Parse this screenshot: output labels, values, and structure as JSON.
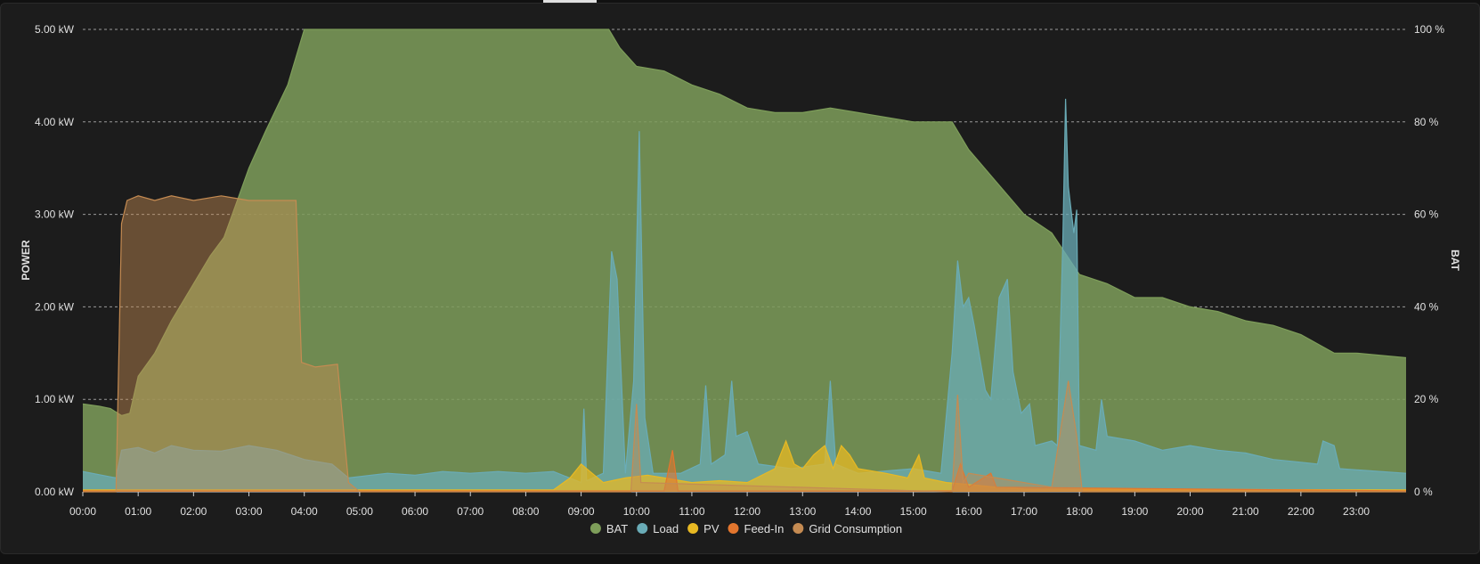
{
  "chart_data": {
    "type": "area",
    "x_labels": [
      "00:00",
      "01:00",
      "02:00",
      "03:00",
      "04:00",
      "05:00",
      "06:00",
      "07:00",
      "08:00",
      "09:00",
      "10:00",
      "11:00",
      "12:00",
      "13:00",
      "14:00",
      "15:00",
      "16:00",
      "17:00",
      "18:00",
      "19:00",
      "20:00",
      "21:00",
      "22:00",
      "23:00"
    ],
    "x_range": [
      0,
      23.9
    ],
    "y_left": {
      "title": "POWER",
      "unit": "kW",
      "range": [
        0,
        5
      ],
      "ticks": [
        "0.00 kW",
        "1.00 kW",
        "2.00 kW",
        "3.00 kW",
        "4.00 kW",
        "5.00 kW"
      ]
    },
    "y_right": {
      "title": "BAT",
      "unit": "%",
      "range": [
        0,
        100
      ],
      "ticks": [
        "0 %",
        "20 %",
        "40 %",
        "60 %",
        "80 %",
        "100 %"
      ]
    },
    "grid": true,
    "legend_position": "bottom",
    "series": [
      {
        "name": "BAT",
        "axis": "right",
        "color": "#7e9e5a",
        "points": [
          [
            0,
            19
          ],
          [
            0.3,
            18.5
          ],
          [
            0.5,
            18
          ],
          [
            0.7,
            16.5
          ],
          [
            0.85,
            17
          ],
          [
            1,
            25
          ],
          [
            1.3,
            30
          ],
          [
            1.6,
            37
          ],
          [
            2,
            45
          ],
          [
            2.3,
            51
          ],
          [
            2.55,
            55
          ],
          [
            2.7,
            60
          ],
          [
            3,
            70
          ],
          [
            3.3,
            78
          ],
          [
            3.7,
            88
          ],
          [
            4,
            100
          ],
          [
            9.5,
            100
          ],
          [
            9.7,
            96
          ],
          [
            10,
            92
          ],
          [
            10.5,
            91
          ],
          [
            11,
            88
          ],
          [
            11.5,
            86
          ],
          [
            12,
            83
          ],
          [
            12.5,
            82
          ],
          [
            13,
            82
          ],
          [
            13.5,
            83
          ],
          [
            14,
            82
          ],
          [
            14.5,
            81
          ],
          [
            15,
            80
          ],
          [
            15.7,
            80
          ],
          [
            16,
            74
          ],
          [
            16.5,
            67
          ],
          [
            17,
            60
          ],
          [
            17.5,
            56
          ],
          [
            18,
            47
          ],
          [
            18.5,
            45
          ],
          [
            19,
            42
          ],
          [
            19.5,
            42
          ],
          [
            20,
            40
          ],
          [
            20.5,
            39
          ],
          [
            21,
            37
          ],
          [
            21.5,
            36
          ],
          [
            22,
            34
          ],
          [
            22.3,
            32
          ],
          [
            22.6,
            30
          ],
          [
            23,
            30
          ],
          [
            23.9,
            29
          ]
        ]
      },
      {
        "name": "Load",
        "axis": "left",
        "color": "#6aacb7",
        "points": [
          [
            0,
            0.22
          ],
          [
            0.6,
            0.15
          ],
          [
            0.7,
            0.45
          ],
          [
            1,
            0.48
          ],
          [
            1.3,
            0.42
          ],
          [
            1.6,
            0.5
          ],
          [
            2,
            0.45
          ],
          [
            2.5,
            0.44
          ],
          [
            3,
            0.5
          ],
          [
            3.5,
            0.45
          ],
          [
            4,
            0.35
          ],
          [
            4.5,
            0.3
          ],
          [
            4.8,
            0.15
          ],
          [
            5.5,
            0.2
          ],
          [
            6,
            0.18
          ],
          [
            6.5,
            0.22
          ],
          [
            7,
            0.2
          ],
          [
            7.5,
            0.22
          ],
          [
            8,
            0.2
          ],
          [
            8.5,
            0.22
          ],
          [
            9,
            0.1
          ],
          [
            9.05,
            0.9
          ],
          [
            9.1,
            0.12
          ],
          [
            9.4,
            0.2
          ],
          [
            9.55,
            2.6
          ],
          [
            9.65,
            2.3
          ],
          [
            9.8,
            0.2
          ],
          [
            9.95,
            1.2
          ],
          [
            10.05,
            3.9
          ],
          [
            10.15,
            0.8
          ],
          [
            10.3,
            0.2
          ],
          [
            10.8,
            0.2
          ],
          [
            11.15,
            0.3
          ],
          [
            11.25,
            1.15
          ],
          [
            11.35,
            0.3
          ],
          [
            11.6,
            0.4
          ],
          [
            11.72,
            1.2
          ],
          [
            11.8,
            0.6
          ],
          [
            12,
            0.65
          ],
          [
            12.2,
            0.3
          ],
          [
            12.8,
            0.25
          ],
          [
            13.4,
            0.3
          ],
          [
            13.5,
            1.2
          ],
          [
            13.6,
            0.3
          ],
          [
            14,
            0.2
          ],
          [
            15,
            0.25
          ],
          [
            15.5,
            0.2
          ],
          [
            15.7,
            1.5
          ],
          [
            15.8,
            2.5
          ],
          [
            15.9,
            2.0
          ],
          [
            16,
            2.1
          ],
          [
            16.1,
            1.8
          ],
          [
            16.3,
            1.1
          ],
          [
            16.4,
            1.0
          ],
          [
            16.55,
            2.1
          ],
          [
            16.7,
            2.3
          ],
          [
            16.8,
            1.3
          ],
          [
            16.95,
            0.85
          ],
          [
            17.1,
            0.95
          ],
          [
            17.2,
            0.5
          ],
          [
            17.5,
            0.55
          ],
          [
            17.6,
            0.5
          ],
          [
            17.7,
            2.7
          ],
          [
            17.75,
            4.25
          ],
          [
            17.8,
            3.3
          ],
          [
            17.9,
            2.8
          ],
          [
            17.95,
            3.05
          ],
          [
            18,
            0.5
          ],
          [
            18.3,
            0.45
          ],
          [
            18.4,
            1.0
          ],
          [
            18.5,
            0.6
          ],
          [
            19,
            0.55
          ],
          [
            19.5,
            0.45
          ],
          [
            20,
            0.5
          ],
          [
            20.5,
            0.45
          ],
          [
            21,
            0.42
          ],
          [
            21.5,
            0.35
          ],
          [
            22,
            0.32
          ],
          [
            22.3,
            0.3
          ],
          [
            22.4,
            0.55
          ],
          [
            22.6,
            0.5
          ],
          [
            22.7,
            0.25
          ],
          [
            23.9,
            0.2
          ]
        ]
      },
      {
        "name": "PV",
        "axis": "left",
        "color": "#e8b923",
        "points": [
          [
            0,
            0.02
          ],
          [
            8.5,
            0.02
          ],
          [
            8.8,
            0.15
          ],
          [
            9,
            0.3
          ],
          [
            9.2,
            0.2
          ],
          [
            9.4,
            0.1
          ],
          [
            9.8,
            0.15
          ],
          [
            10.2,
            0.18
          ],
          [
            10.5,
            0.15
          ],
          [
            11,
            0.1
          ],
          [
            11.5,
            0.12
          ],
          [
            12,
            0.1
          ],
          [
            12.5,
            0.25
          ],
          [
            12.7,
            0.55
          ],
          [
            12.85,
            0.3
          ],
          [
            13,
            0.25
          ],
          [
            13.2,
            0.4
          ],
          [
            13.4,
            0.5
          ],
          [
            13.55,
            0.25
          ],
          [
            13.7,
            0.5
          ],
          [
            13.85,
            0.4
          ],
          [
            14,
            0.25
          ],
          [
            14.5,
            0.2
          ],
          [
            14.9,
            0.15
          ],
          [
            15.1,
            0.4
          ],
          [
            15.2,
            0.15
          ],
          [
            15.6,
            0.1
          ],
          [
            16,
            0.08
          ],
          [
            16.5,
            0.05
          ],
          [
            17,
            0.03
          ],
          [
            23.9,
            0.02
          ]
        ]
      },
      {
        "name": "Feed-In",
        "axis": "left",
        "color": "#e3762e",
        "points": [
          [
            0,
            0.01
          ],
          [
            10.5,
            0.01
          ],
          [
            10.65,
            0.45
          ],
          [
            10.75,
            0.01
          ],
          [
            15.7,
            0.01
          ],
          [
            15.85,
            0.3
          ],
          [
            16,
            0.05
          ],
          [
            16.4,
            0.2
          ],
          [
            16.5,
            0.05
          ],
          [
            23.9,
            0.01
          ]
        ]
      },
      {
        "name": "Grid Consumption",
        "axis": "left",
        "color": "#c58b52",
        "points": [
          [
            0,
            0
          ],
          [
            0.6,
            0
          ],
          [
            0.7,
            2.9
          ],
          [
            0.8,
            3.15
          ],
          [
            1,
            3.2
          ],
          [
            1.3,
            3.15
          ],
          [
            1.6,
            3.2
          ],
          [
            2,
            3.15
          ],
          [
            2.5,
            3.2
          ],
          [
            3,
            3.15
          ],
          [
            3.5,
            3.15
          ],
          [
            3.85,
            3.15
          ],
          [
            3.95,
            1.4
          ],
          [
            4.2,
            1.35
          ],
          [
            4.6,
            1.38
          ],
          [
            4.8,
            0.1
          ],
          [
            5,
            0
          ],
          [
            9.9,
            0
          ],
          [
            10.0,
            0.95
          ],
          [
            10.08,
            0.1
          ],
          [
            15.7,
            0
          ],
          [
            15.8,
            1.05
          ],
          [
            15.9,
            0.1
          ],
          [
            16,
            0.2
          ],
          [
            16.5,
            0.15
          ],
          [
            17.5,
            0.05
          ],
          [
            17.8,
            1.2
          ],
          [
            17.95,
            0.6
          ],
          [
            18.05,
            0
          ],
          [
            23.9,
            0
          ]
        ]
      }
    ]
  }
}
